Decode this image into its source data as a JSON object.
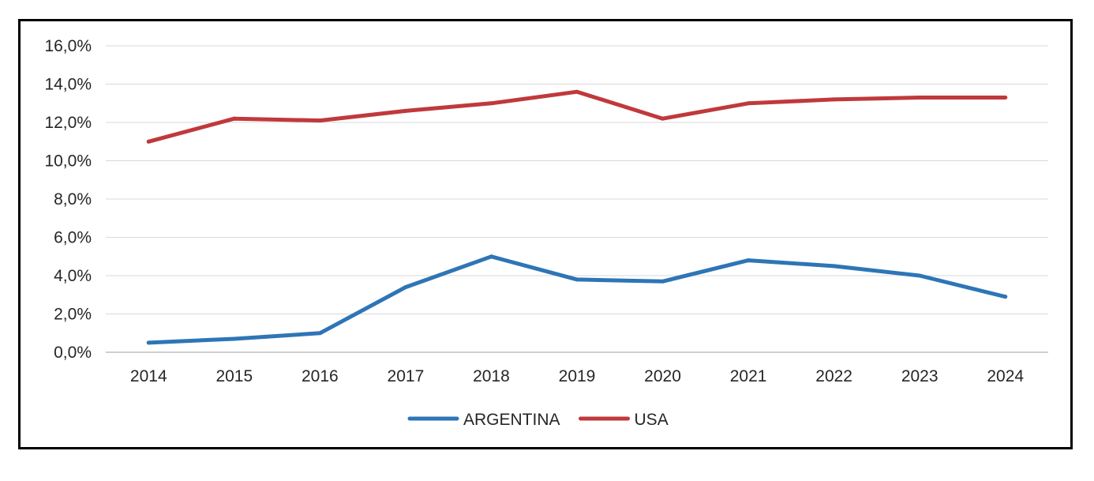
{
  "chart_data": {
    "type": "line",
    "title": "",
    "xlabel": "",
    "ylabel": "",
    "categories": [
      "2014",
      "2015",
      "2016",
      "2017",
      "2018",
      "2019",
      "2020",
      "2021",
      "2022",
      "2023",
      "2024"
    ],
    "ylim": [
      0,
      16
    ],
    "yticks": [
      0,
      2,
      4,
      6,
      8,
      10,
      12,
      14,
      16
    ],
    "ytick_labels": [
      "0,0%",
      "2,0%",
      "4,0%",
      "6,0%",
      "8,0%",
      "10,0%",
      "12,0%",
      "14,0%",
      "16,0%"
    ],
    "grid": true,
    "legend_position": "bottom-center",
    "series": [
      {
        "name": "ARGENTINA",
        "color": "#2E75B6",
        "values": [
          0.5,
          0.7,
          1.0,
          3.4,
          5.0,
          3.8,
          3.7,
          4.8,
          4.5,
          4.0,
          2.9
        ]
      },
      {
        "name": "USA",
        "color": "#C0393B",
        "values": [
          11.0,
          12.2,
          12.1,
          12.6,
          13.0,
          13.6,
          12.2,
          13.0,
          13.2,
          13.3,
          13.3
        ]
      }
    ]
  }
}
